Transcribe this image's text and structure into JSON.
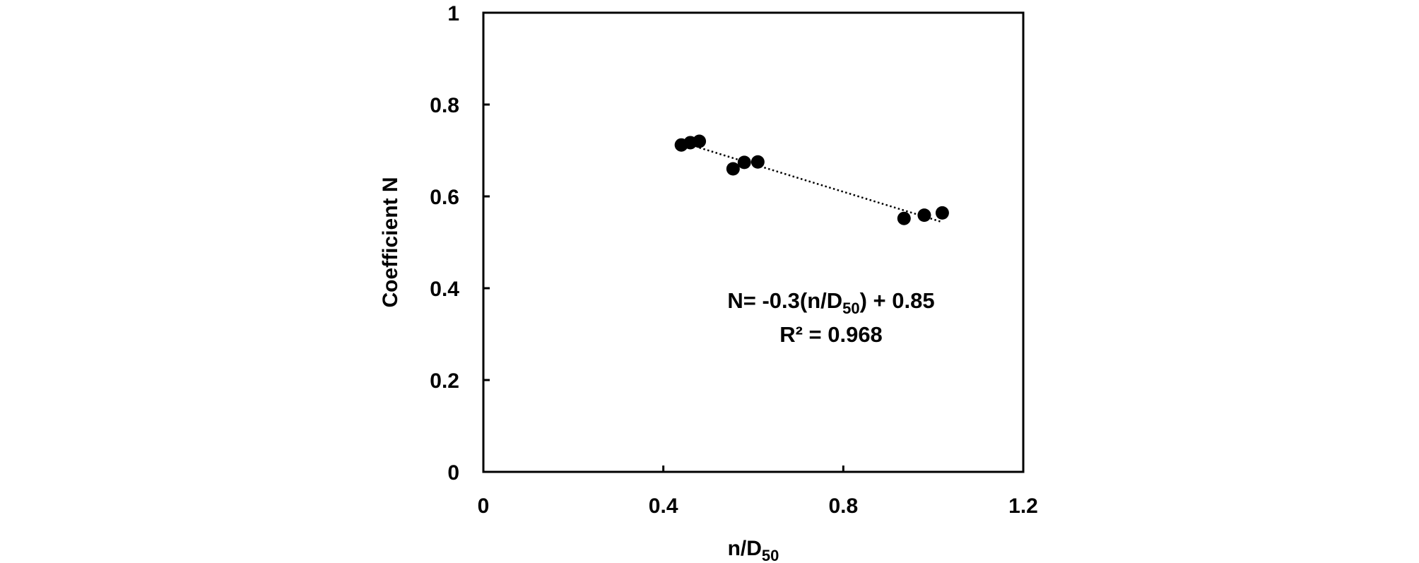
{
  "chart_data": {
    "type": "scatter",
    "title": "",
    "xlabel_main": "n/D",
    "xlabel_sub": "50",
    "ylabel": "Coefficient N",
    "xlim": [
      0,
      1.2
    ],
    "ylim": [
      0,
      1
    ],
    "x_ticks": [
      0,
      0.4,
      0.8,
      1.2
    ],
    "x_tick_labels": [
      "0",
      "0.4",
      "0.8",
      "1.2"
    ],
    "y_ticks": [
      0,
      0.2,
      0.4,
      0.6,
      0.8,
      1
    ],
    "y_tick_labels": [
      "0",
      "0.2",
      "0.4",
      "0.6",
      "0.8",
      "1"
    ],
    "grid": false,
    "series": [
      {
        "x": [
          0.44,
          0.46,
          0.48,
          0.555,
          0.58,
          0.61,
          0.935,
          0.98,
          1.02
        ],
        "y": [
          0.712,
          0.717,
          0.72,
          0.66,
          0.674,
          0.675,
          0.552,
          0.559,
          0.564
        ],
        "color": "#000000"
      }
    ],
    "trendline": {
      "style": "dotted",
      "slope": -0.3,
      "intercept": 0.85,
      "x_range": [
        0.48,
        1.02
      ]
    },
    "annotation": {
      "eq_prefix": "N= -0.3(n/D",
      "eq_sub": "50",
      "eq_suffix": ") + 0.85",
      "r2_text": "R² = 0.968"
    }
  }
}
